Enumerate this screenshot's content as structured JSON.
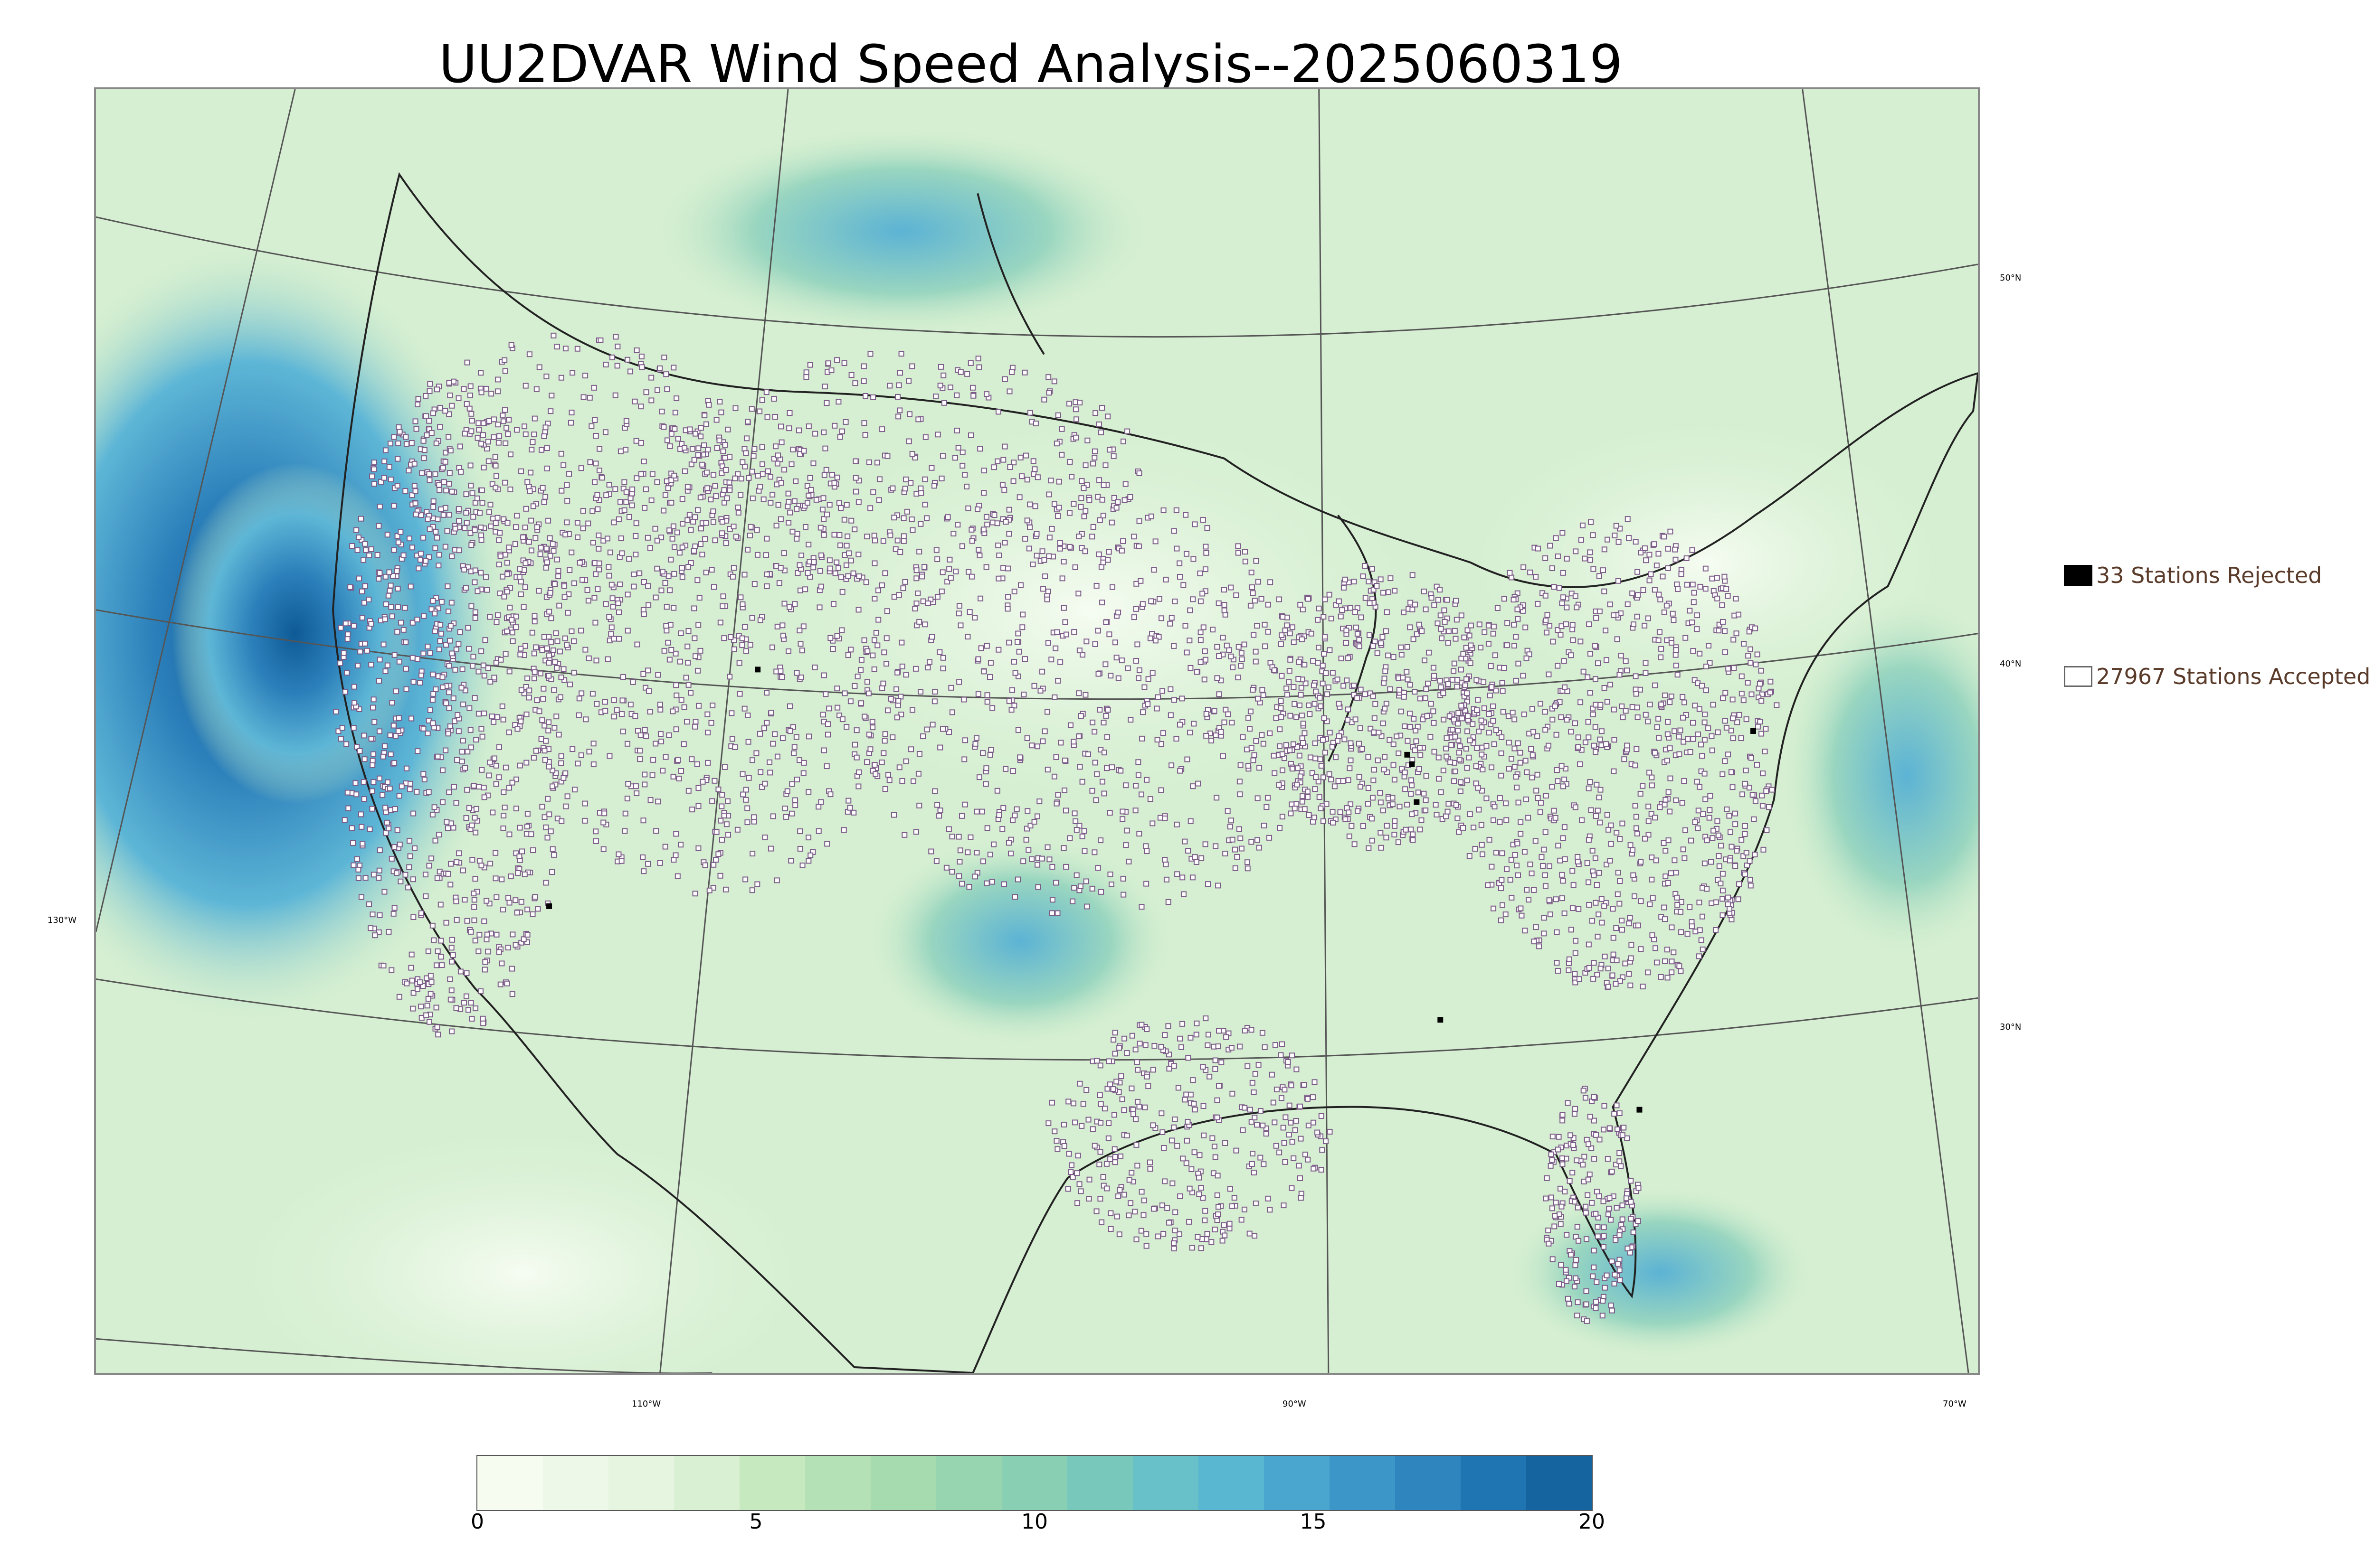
{
  "title": "UU2DVAR Wind Speed Analysis--2025060319",
  "latitude_labels": [
    "50°N",
    "40°N",
    "30°N"
  ],
  "longitude_labels": [
    "130°W",
    "110°W",
    "90°W",
    "70°W"
  ],
  "legend": {
    "rejected": {
      "label": "33 Stations Rejected",
      "swatch_color": "#000000"
    },
    "accepted": {
      "label": "27967 Stations Accepted",
      "swatch_color": "#ffffff"
    }
  },
  "colorbar": {
    "ticks": [
      "0",
      "5",
      "10",
      "15",
      "20"
    ],
    "range": [
      0,
      20
    ],
    "colors": [
      "#f7fcf0",
      "#eef8e8",
      "#e5f5e0",
      "#d9f0d3",
      "#c7e9c0",
      "#b5e1b6",
      "#a6dbb0",
      "#97d5b0",
      "#88cfb4",
      "#78c8bc",
      "#68c1c8",
      "#5ab7d2",
      "#4ba6cf",
      "#3d96c8",
      "#2f86be",
      "#1f74b2",
      "#15639f"
    ]
  },
  "map": {
    "background_color": "#d4efd0",
    "high_wind_color": "#2b7fba",
    "station_marker_color": "#7a5a86"
  }
}
